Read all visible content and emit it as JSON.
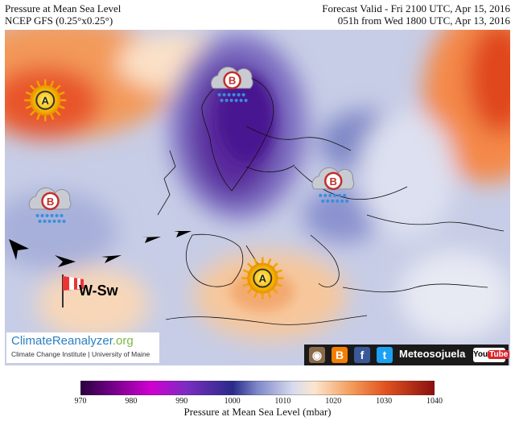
{
  "header": {
    "title_left": "Pressure at Mean Sea Level",
    "model_left": "NCEP GFS (0.25°x0.25°)",
    "valid_right": "Forecast Valid - Fri 2100 UTC, Apr 15, 2016",
    "run_right": "051h from Wed 1800 UTC, Apr 13, 2016"
  },
  "map": {
    "pressure_systems": [
      {
        "type": "high",
        "letter": "A",
        "x_pct": 8,
        "y_pct": 21
      },
      {
        "type": "low",
        "letter": "B",
        "x_pct": 45,
        "y_pct": 16
      },
      {
        "type": "low",
        "letter": "B",
        "x_pct": 9,
        "y_pct": 52
      },
      {
        "type": "low",
        "letter": "B",
        "x_pct": 65,
        "y_pct": 46
      },
      {
        "type": "high",
        "letter": "A",
        "x_pct": 51,
        "y_pct": 74
      }
    ],
    "wind_label": "W-Sw"
  },
  "colorbar": {
    "ticks": [
      "970",
      "980",
      "990",
      "1000",
      "1010",
      "1020",
      "1030",
      "1040"
    ],
    "range": [
      970,
      1040
    ],
    "label": "Pressure at Mean Sea Level (mbar)"
  },
  "branding": {
    "logo_main": "ClimateReanalyzer",
    "logo_suffix": ".org",
    "logo_sub": "Climate Change Institute | University of Maine",
    "social_name": "Meteosojuela",
    "youtube": "You",
    "youtube_tube": "Tube"
  }
}
